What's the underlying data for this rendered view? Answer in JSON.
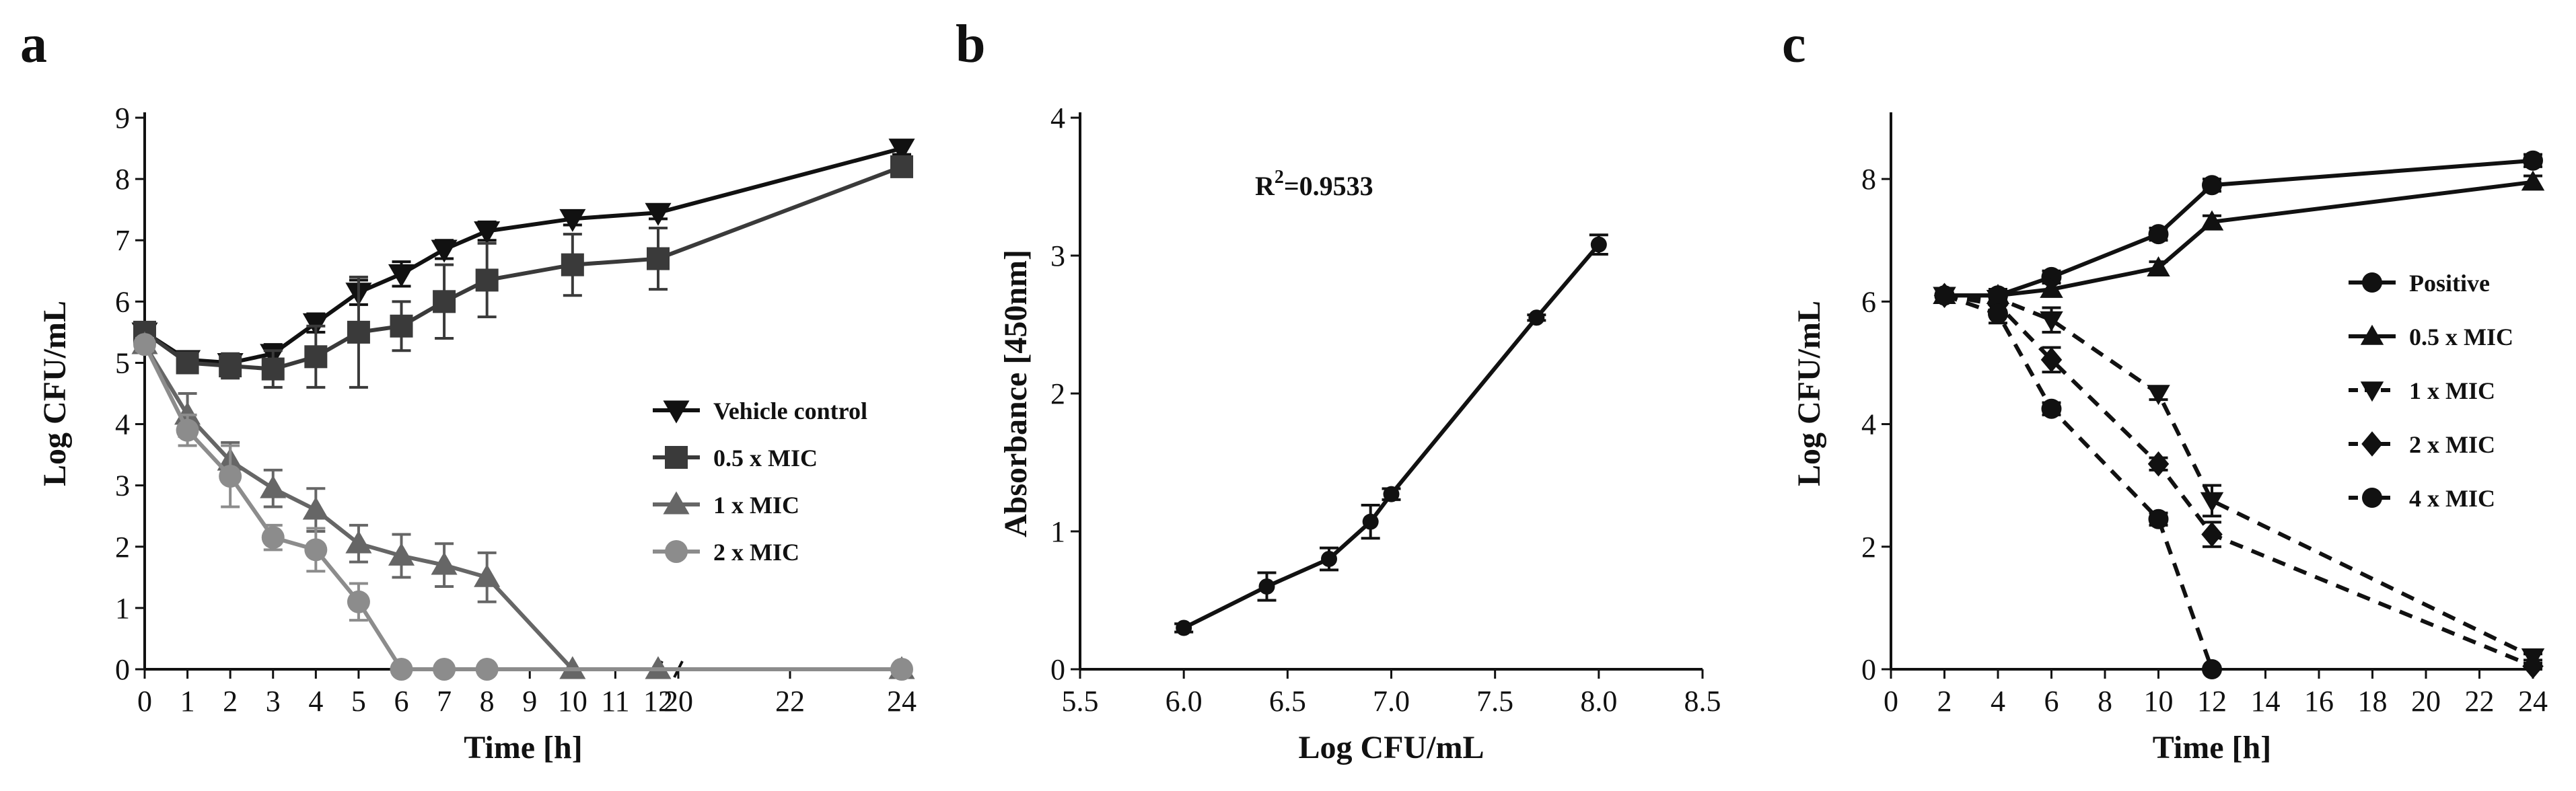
{
  "colors": {
    "vehicle": "#111111",
    "half_mic": "#3a3a3a",
    "one_mic": "#666666",
    "two_mic": "#8c8c8c",
    "axis": "#111111",
    "background": "#ffffff"
  },
  "chart_data": [
    {
      "panel": "a",
      "type": "line",
      "title": "",
      "xlabel": "Time [h]",
      "ylabel": "Log CFU/mL",
      "xlim": [
        0,
        24
      ],
      "ylim": [
        0,
        9
      ],
      "x_broken_axis": {
        "break_between": [
          12,
          20
        ]
      },
      "xticks": [
        0,
        1,
        2,
        3,
        4,
        5,
        6,
        7,
        8,
        9,
        10,
        11,
        12,
        20,
        22,
        24
      ],
      "yticks": [
        0,
        1,
        2,
        3,
        4,
        5,
        6,
        7,
        8,
        9
      ],
      "legend_position": "center-right",
      "series": [
        {
          "name": "Vehicle control",
          "marker": "triangle-down",
          "color": "#111111",
          "linestyle": "solid",
          "x": [
            0,
            1,
            2,
            3,
            4,
            5,
            6,
            7,
            8,
            10,
            12,
            24
          ],
          "y": [
            5.5,
            5.05,
            5.0,
            5.15,
            5.65,
            6.15,
            6.45,
            6.85,
            7.15,
            7.35,
            7.45,
            8.5
          ],
          "err": [
            0.1,
            0.1,
            0.1,
            0.15,
            0.15,
            0.2,
            0.2,
            0.15,
            0.15,
            0.1,
            0.1,
            0.1
          ]
        },
        {
          "name": "0.5 x MIC",
          "marker": "square",
          "color": "#3a3a3a",
          "linestyle": "solid",
          "x": [
            0,
            1,
            2,
            3,
            4,
            5,
            6,
            7,
            8,
            10,
            12,
            24
          ],
          "y": [
            5.5,
            5.0,
            4.95,
            4.9,
            5.1,
            5.5,
            5.6,
            6.0,
            6.35,
            6.6,
            6.7,
            8.2
          ],
          "err": [
            0.1,
            0.15,
            0.2,
            0.3,
            0.5,
            0.9,
            0.4,
            0.6,
            0.6,
            0.5,
            0.5,
            0.1
          ]
        },
        {
          "name": "1 x MIC",
          "marker": "triangle-up",
          "color": "#666666",
          "linestyle": "solid",
          "x": [
            0,
            1,
            2,
            3,
            4,
            5,
            6,
            7,
            8,
            10,
            12,
            24
          ],
          "y": [
            5.3,
            4.15,
            3.4,
            2.95,
            2.6,
            2.05,
            1.85,
            1.7,
            1.5,
            0.0,
            0.0,
            0.0
          ],
          "err": [
            0.1,
            0.35,
            0.3,
            0.3,
            0.35,
            0.3,
            0.35,
            0.35,
            0.4,
            0.0,
            0.0,
            0.0
          ]
        },
        {
          "name": "2 x MIC",
          "marker": "circle",
          "color": "#8c8c8c",
          "linestyle": "solid",
          "x": [
            0,
            1,
            2,
            3,
            4,
            5,
            6,
            7,
            8,
            24
          ],
          "y": [
            5.3,
            3.9,
            3.15,
            2.15,
            1.95,
            1.1,
            0.0,
            0.0,
            0.0,
            0.0
          ],
          "err": [
            0.1,
            0.25,
            0.5,
            0.2,
            0.35,
            0.3,
            0.0,
            0.0,
            0.0,
            0.0
          ]
        }
      ]
    },
    {
      "panel": "b",
      "type": "line",
      "title": "",
      "xlabel": "Log CFU/mL",
      "ylabel": "Absorbance [450nm]",
      "xlim": [
        5.5,
        8.5
      ],
      "ylim": [
        0,
        4
      ],
      "xticks": [
        5.5,
        6.0,
        6.5,
        7.0,
        7.5,
        8.0,
        8.5
      ],
      "xtick_labels": [
        "5.5",
        "6.0",
        "6.5",
        "7.0",
        "7.5",
        "8.0",
        "8.5"
      ],
      "yticks": [
        0,
        1,
        2,
        3,
        4
      ],
      "annotation": {
        "base": "R",
        "sup": "2",
        "tail": "=0.9533"
      },
      "series": [
        {
          "name": "Absorbance",
          "marker": "circle",
          "color": "#111111",
          "linestyle": "solid",
          "x": [
            6.0,
            6.4,
            6.7,
            6.9,
            7.0,
            7.7,
            8.0
          ],
          "y": [
            0.3,
            0.6,
            0.8,
            1.07,
            1.27,
            2.55,
            3.08
          ],
          "err": [
            0.03,
            0.1,
            0.08,
            0.12,
            0.04,
            0.02,
            0.07
          ]
        }
      ]
    },
    {
      "panel": "c",
      "type": "line",
      "title": "",
      "xlabel": "Time [h]",
      "ylabel": "Log CFU/mL",
      "xlim": [
        0,
        24
      ],
      "ylim": [
        0,
        9
      ],
      "xticks": [
        0,
        2,
        4,
        6,
        8,
        10,
        12,
        14,
        16,
        18,
        20,
        22,
        24
      ],
      "yticks": [
        0,
        2,
        4,
        6,
        8
      ],
      "legend_position": "center-right",
      "series": [
        {
          "name": "Positive",
          "marker": "circle",
          "color": "#111111",
          "linestyle": "solid",
          "x": [
            2,
            4,
            6,
            10,
            12,
            24
          ],
          "y": [
            6.1,
            6.1,
            6.4,
            7.1,
            7.9,
            8.3
          ],
          "err": [
            0.1,
            0.1,
            0.1,
            0.1,
            0.1,
            0.1
          ]
        },
        {
          "name": "0.5 x MIC",
          "marker": "triangle-up",
          "color": "#111111",
          "linestyle": "solid",
          "x": [
            2,
            4,
            6,
            10,
            12,
            24
          ],
          "y": [
            6.1,
            6.1,
            6.2,
            6.55,
            7.3,
            7.95
          ],
          "err": [
            0.1,
            0.1,
            0.1,
            0.1,
            0.1,
            0.1
          ]
        },
        {
          "name": "1 x MIC",
          "marker": "triangle-down",
          "color": "#111111",
          "linestyle": "dashed",
          "x": [
            2,
            4,
            6,
            10,
            12,
            24
          ],
          "y": [
            6.1,
            6.05,
            5.7,
            4.5,
            2.75,
            0.2
          ],
          "err": [
            0.1,
            0.1,
            0.2,
            0.1,
            0.25,
            0.05
          ]
        },
        {
          "name": "2 x MIC",
          "marker": "diamond",
          "color": "#111111",
          "linestyle": "dashed",
          "x": [
            2,
            4,
            6,
            10,
            12,
            24
          ],
          "y": [
            6.1,
            5.95,
            5.05,
            3.35,
            2.2,
            0.05
          ],
          "err": [
            0.1,
            0.1,
            0.2,
            0.1,
            0.2,
            0.05
          ]
        },
        {
          "name": "4 x MIC",
          "marker": "circle",
          "color": "#111111",
          "linestyle": "dashed",
          "x": [
            2,
            4,
            6,
            10,
            12
          ],
          "y": [
            6.1,
            5.8,
            4.25,
            2.45,
            0.0
          ],
          "err": [
            0.1,
            0.15,
            0.1,
            0.1,
            0.0
          ]
        }
      ]
    }
  ]
}
